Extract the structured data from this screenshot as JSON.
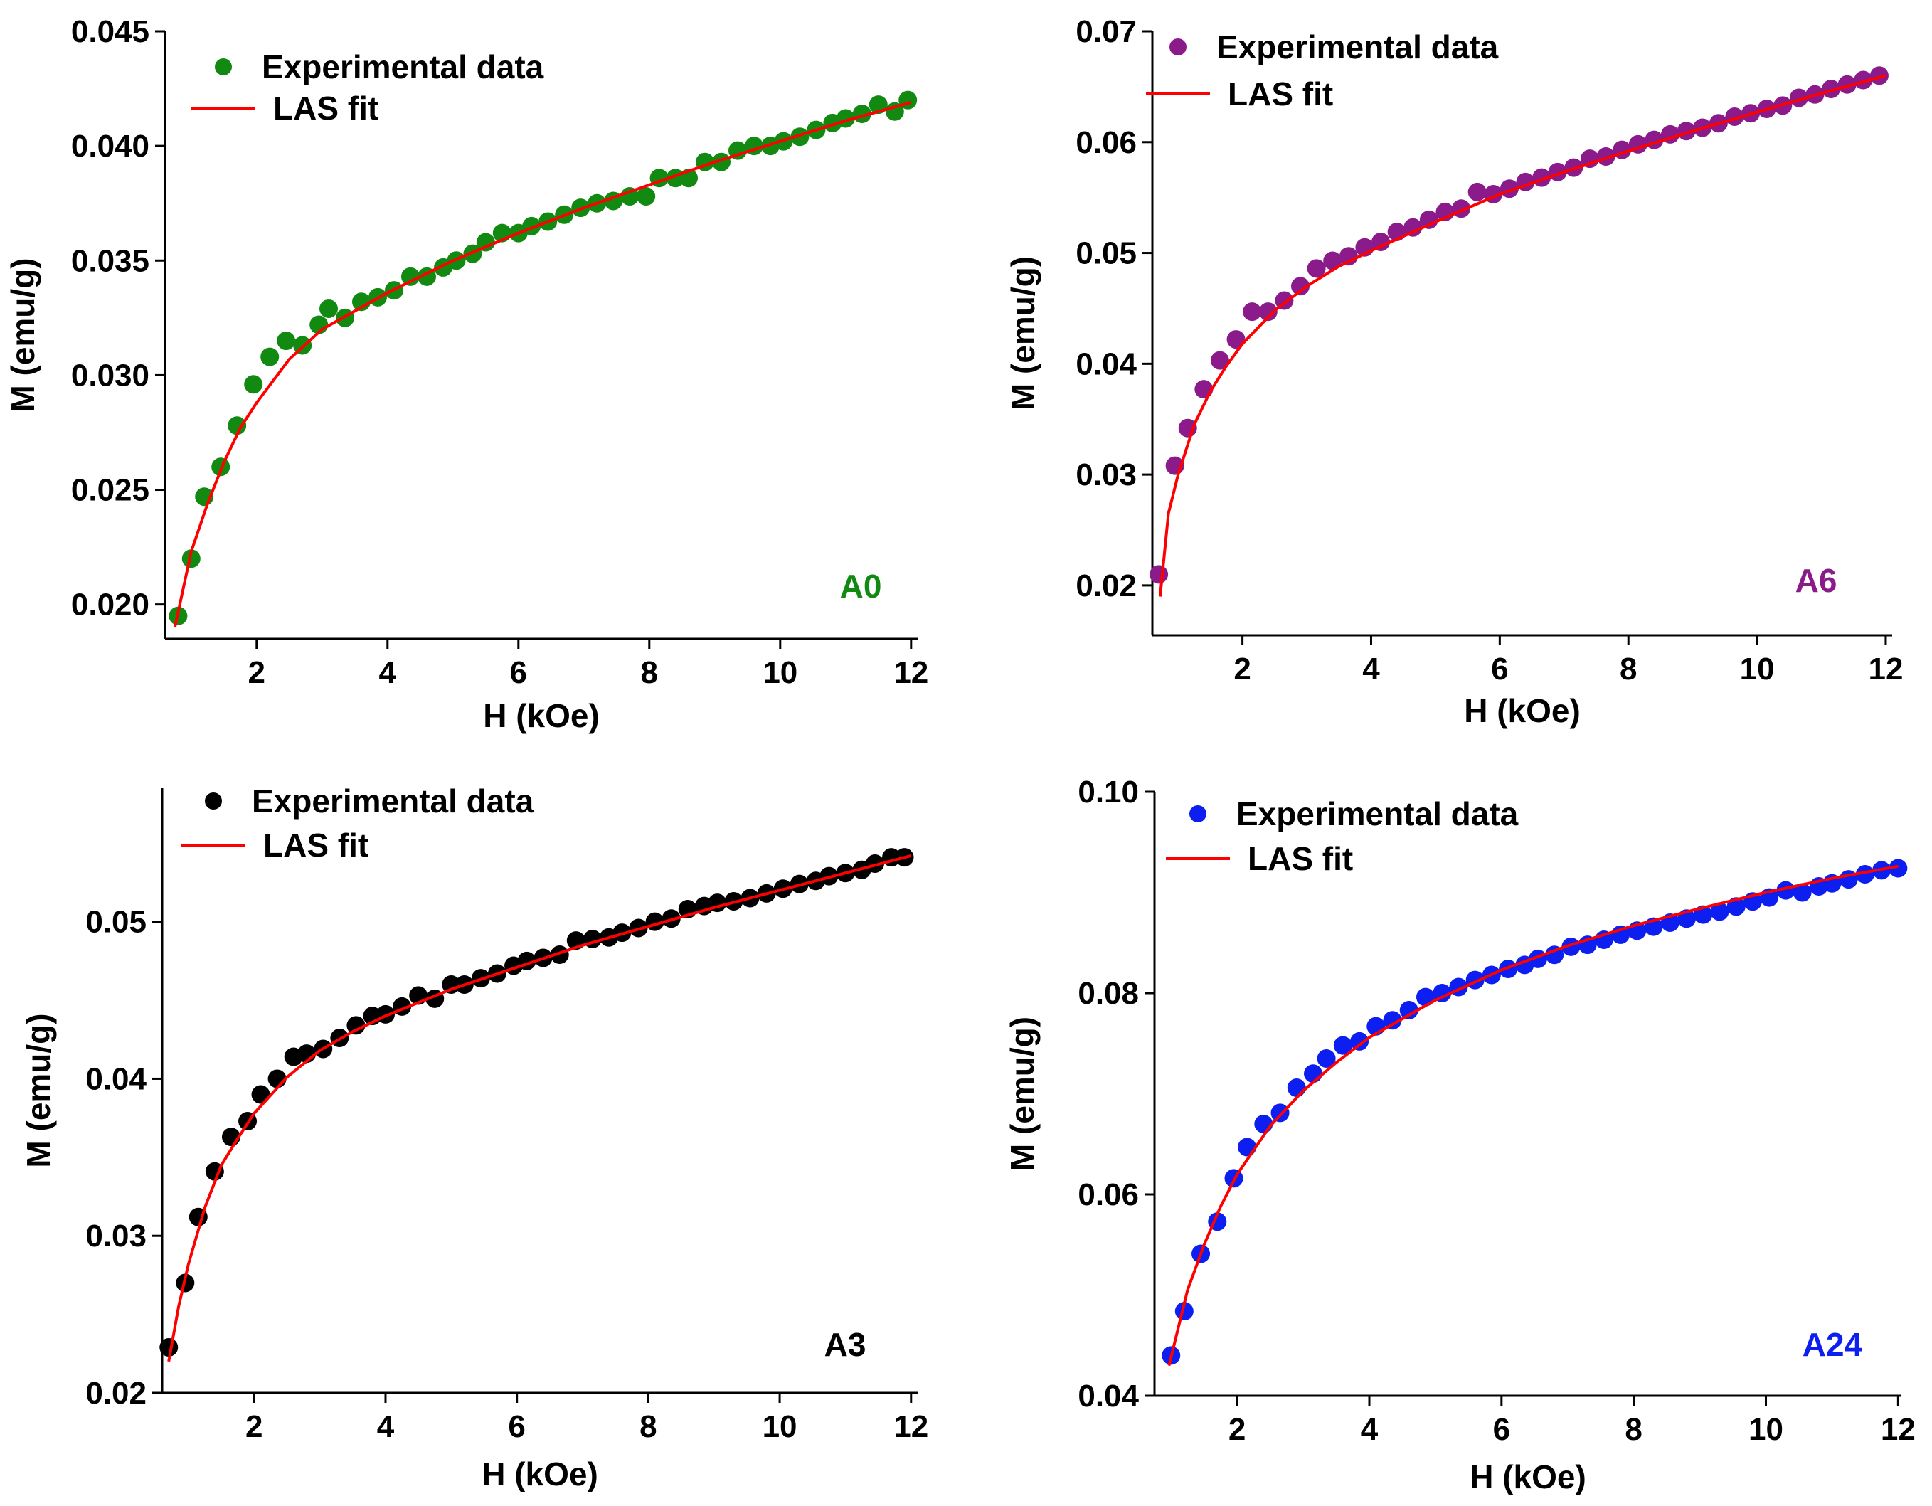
{
  "chart_data": [
    {
      "id": "A0",
      "type": "scatter",
      "sample_label": "A0",
      "color": "#128a12",
      "fit_color": "#ff0000",
      "xlabel": "H (kOe)",
      "ylabel": "M (emu/g)",
      "xlim": [
        0.6,
        12.1
      ],
      "ylim": [
        0.0185,
        0.045
      ],
      "xticks": [
        2,
        4,
        6,
        8,
        10,
        12
      ],
      "xtick_labels": [
        "2",
        "4",
        "6",
        "8",
        "10",
        "12"
      ],
      "yticks": [
        0.02,
        0.025,
        0.03,
        0.035,
        0.04,
        0.045
      ],
      "ytick_labels": [
        "0.020",
        "0.025",
        "0.030",
        "0.035",
        "0.040",
        "0.045"
      ],
      "legend": {
        "data_label": "Experimental data",
        "fit_label": "LAS fit",
        "position": "top-left"
      },
      "experimental": {
        "x": [
          0.8,
          1.0,
          1.2,
          1.45,
          1.7,
          1.95,
          2.2,
          2.45,
          2.7,
          2.95,
          3.1,
          3.35,
          3.6,
          3.85,
          4.1,
          4.35,
          4.6,
          4.85,
          5.05,
          5.3,
          5.5,
          5.75,
          6.0,
          6.2,
          6.45,
          6.7,
          6.95,
          7.2,
          7.45,
          7.7,
          7.95,
          8.15,
          8.4,
          8.6,
          8.85,
          9.1,
          9.35,
          9.6,
          9.85,
          10.05,
          10.3,
          10.55,
          10.8,
          11.0,
          11.25,
          11.5,
          11.75,
          11.95
        ],
        "y": [
          0.0195,
          0.022,
          0.0247,
          0.026,
          0.0278,
          0.0296,
          0.0308,
          0.0315,
          0.0313,
          0.0322,
          0.0329,
          0.0325,
          0.0332,
          0.0334,
          0.0337,
          0.0343,
          0.0343,
          0.0347,
          0.035,
          0.0353,
          0.0358,
          0.0362,
          0.0362,
          0.0365,
          0.0367,
          0.037,
          0.0373,
          0.0375,
          0.0376,
          0.0378,
          0.0378,
          0.0386,
          0.0386,
          0.0386,
          0.0393,
          0.0393,
          0.0398,
          0.04,
          0.04,
          0.0402,
          0.0404,
          0.0407,
          0.041,
          0.0412,
          0.0414,
          0.0418,
          0.0415,
          0.042
        ]
      },
      "fit": {
        "x": [
          0.75,
          1.0,
          1.25,
          1.5,
          1.75,
          2.0,
          2.5,
          3.0,
          3.5,
          4.0,
          5.0,
          6.0,
          7.0,
          8.0,
          9.0,
          10.0,
          11.0,
          12.0
        ],
        "y": [
          0.019,
          0.0223,
          0.0244,
          0.0262,
          0.0277,
          0.0288,
          0.0307,
          0.032,
          0.0328,
          0.0336,
          0.035,
          0.0362,
          0.0373,
          0.0383,
          0.0393,
          0.0402,
          0.0411,
          0.0419
        ]
      }
    },
    {
      "id": "A6",
      "type": "scatter",
      "sample_label": "A6",
      "color": "#8b1a8b",
      "fit_color": "#ff0000",
      "xlabel": "H (kOe)",
      "ylabel": "M (emu/g)",
      "xlim": [
        0.6,
        12.1
      ],
      "ylim": [
        0.0155,
        0.07
      ],
      "xticks": [
        2,
        4,
        6,
        8,
        10,
        12
      ],
      "xtick_labels": [
        "2",
        "4",
        "6",
        "8",
        "10",
        "12"
      ],
      "yticks": [
        0.02,
        0.03,
        0.04,
        0.05,
        0.06,
        0.07
      ],
      "ytick_labels": [
        "0.02",
        "0.03",
        "0.04",
        "0.05",
        "0.06",
        "0.07"
      ],
      "legend": {
        "data_label": "Experimental data",
        "fit_label": "LAS fit",
        "position": "top-left"
      },
      "experimental": {
        "x": [
          0.7,
          0.95,
          1.15,
          1.4,
          1.65,
          1.9,
          2.15,
          2.4,
          2.65,
          2.9,
          3.15,
          3.4,
          3.65,
          3.9,
          4.15,
          4.4,
          4.65,
          4.9,
          5.15,
          5.4,
          5.65,
          5.9,
          6.15,
          6.4,
          6.65,
          6.9,
          7.15,
          7.4,
          7.65,
          7.9,
          8.15,
          8.4,
          8.65,
          8.9,
          9.15,
          9.4,
          9.65,
          9.9,
          10.15,
          10.4,
          10.65,
          10.9,
          11.15,
          11.4,
          11.65,
          11.9
        ],
        "y": [
          0.021,
          0.0308,
          0.0342,
          0.0377,
          0.0403,
          0.0422,
          0.0447,
          0.0447,
          0.0457,
          0.047,
          0.0486,
          0.0493,
          0.0497,
          0.0505,
          0.051,
          0.0519,
          0.0523,
          0.053,
          0.0537,
          0.054,
          0.0555,
          0.0553,
          0.0558,
          0.0564,
          0.0568,
          0.0573,
          0.0577,
          0.0585,
          0.0587,
          0.0593,
          0.0598,
          0.0602,
          0.0607,
          0.061,
          0.0613,
          0.0617,
          0.0623,
          0.0626,
          0.063,
          0.0633,
          0.064,
          0.0643,
          0.0648,
          0.0652,
          0.0656,
          0.066
        ]
      },
      "fit": {
        "x": [
          0.72,
          0.85,
          1.0,
          1.25,
          1.5,
          1.75,
          2.0,
          2.5,
          3.0,
          3.5,
          4.0,
          5.0,
          6.0,
          7.0,
          8.0,
          9.0,
          10.0,
          11.0,
          12.0
        ],
        "y": [
          0.019,
          0.0265,
          0.03,
          0.0345,
          0.0375,
          0.0398,
          0.0418,
          0.0448,
          0.047,
          0.0488,
          0.0502,
          0.0528,
          0.0553,
          0.0573,
          0.0592,
          0.061,
          0.0627,
          0.0644,
          0.066
        ]
      }
    },
    {
      "id": "A3",
      "type": "scatter",
      "sample_label": "A3",
      "color": "#000000",
      "fit_color": "#ff0000",
      "xlabel": "H (kOe)",
      "ylabel": "M (emu/g)",
      "xlim": [
        0.6,
        12.1
      ],
      "ylim": [
        0.02,
        0.0585
      ],
      "xticks": [
        2,
        4,
        6,
        8,
        10,
        12
      ],
      "xtick_labels": [
        "2",
        "4",
        "6",
        "8",
        "10",
        "12"
      ],
      "yticks": [
        0.02,
        0.03,
        0.04,
        0.05
      ],
      "ytick_labels": [
        "0.02",
        "0.03",
        "0.04",
        "0.05"
      ],
      "legend": {
        "data_label": "Experimental data",
        "fit_label": "LAS fit",
        "position": "top-left"
      },
      "experimental": {
        "x": [
          0.7,
          0.95,
          1.15,
          1.4,
          1.65,
          1.9,
          2.1,
          2.35,
          2.6,
          2.8,
          3.05,
          3.3,
          3.55,
          3.8,
          4.0,
          4.25,
          4.5,
          4.75,
          5.0,
          5.2,
          5.45,
          5.7,
          5.95,
          6.15,
          6.4,
          6.65,
          6.9,
          7.15,
          7.4,
          7.6,
          7.85,
          8.1,
          8.35,
          8.6,
          8.85,
          9.05,
          9.3,
          9.55,
          9.8,
          10.05,
          10.3,
          10.55,
          10.75,
          11.0,
          11.25,
          11.45,
          11.7,
          11.9
        ],
        "y": [
          0.0229,
          0.027,
          0.0312,
          0.0341,
          0.0363,
          0.0373,
          0.039,
          0.04,
          0.0414,
          0.0416,
          0.0419,
          0.0426,
          0.0434,
          0.044,
          0.0441,
          0.0446,
          0.0453,
          0.0451,
          0.046,
          0.046,
          0.0464,
          0.0467,
          0.0472,
          0.0475,
          0.0477,
          0.0479,
          0.0488,
          0.0489,
          0.049,
          0.0493,
          0.0496,
          0.05,
          0.0502,
          0.0508,
          0.051,
          0.0512,
          0.0513,
          0.0515,
          0.0518,
          0.0521,
          0.0524,
          0.0526,
          0.0529,
          0.0531,
          0.0533,
          0.0537,
          0.0541,
          0.0541
        ]
      },
      "fit": {
        "x": [
          0.7,
          0.85,
          1.0,
          1.25,
          1.5,
          1.75,
          2.0,
          2.5,
          3.0,
          3.5,
          4.0,
          5.0,
          6.0,
          7.0,
          8.0,
          9.0,
          10.0,
          11.0,
          12.0
        ],
        "y": [
          0.022,
          0.0255,
          0.0282,
          0.0318,
          0.0345,
          0.0362,
          0.0378,
          0.0401,
          0.0418,
          0.043,
          0.044,
          0.0457,
          0.0471,
          0.0485,
          0.0497,
          0.0509,
          0.052,
          0.0531,
          0.0542
        ]
      }
    },
    {
      "id": "A24",
      "type": "scatter",
      "sample_label": "A24",
      "color": "#0d1ef0",
      "fit_color": "#ff0000",
      "xlabel": "H (kOe)",
      "ylabel": "M (emu/g)",
      "xlim": [
        0.75,
        12.05
      ],
      "ylim": [
        0.04,
        0.1
      ],
      "xticks": [
        2,
        4,
        6,
        8,
        10,
        12
      ],
      "xtick_labels": [
        "2",
        "4",
        "6",
        "8",
        "10",
        "12"
      ],
      "yticks": [
        0.04,
        0.06,
        0.08,
        0.1
      ],
      "ytick_labels": [
        "0.04",
        "0.06",
        "0.08",
        "0.10"
      ],
      "legend": {
        "data_label": "Experimental data",
        "fit_label": "LAS fit",
        "position": "top-left"
      },
      "experimental": {
        "x": [
          1.0,
          1.2,
          1.45,
          1.7,
          1.95,
          2.15,
          2.4,
          2.65,
          2.9,
          3.15,
          3.35,
          3.6,
          3.85,
          4.1,
          4.35,
          4.6,
          4.85,
          5.1,
          5.35,
          5.6,
          5.85,
          6.1,
          6.35,
          6.55,
          6.8,
          7.05,
          7.3,
          7.55,
          7.8,
          8.05,
          8.3,
          8.55,
          8.8,
          9.05,
          9.3,
          9.55,
          9.8,
          10.05,
          10.3,
          10.55,
          10.8,
          11.0,
          11.25,
          11.5,
          11.75,
          12.0
        ],
        "y": [
          0.044,
          0.0484,
          0.0541,
          0.0573,
          0.0616,
          0.0647,
          0.067,
          0.0681,
          0.0706,
          0.072,
          0.0735,
          0.0748,
          0.0752,
          0.0767,
          0.0773,
          0.0783,
          0.0796,
          0.08,
          0.0806,
          0.0813,
          0.0818,
          0.0824,
          0.0828,
          0.0834,
          0.0838,
          0.0846,
          0.0848,
          0.0853,
          0.0858,
          0.0862,
          0.0866,
          0.087,
          0.0874,
          0.0878,
          0.0881,
          0.0886,
          0.0891,
          0.0895,
          0.0902,
          0.09,
          0.0906,
          0.0909,
          0.0913,
          0.0918,
          0.0922,
          0.0924
        ]
      },
      "fit": {
        "x": [
          0.97,
          1.25,
          1.5,
          1.75,
          2.0,
          2.5,
          3.0,
          3.5,
          4.0,
          5.0,
          6.0,
          7.0,
          8.0,
          9.0,
          10.0,
          11.0,
          12.0
        ],
        "y": [
          0.043,
          0.0505,
          0.055,
          0.0588,
          0.062,
          0.0668,
          0.0703,
          0.0731,
          0.0756,
          0.0793,
          0.0823,
          0.0847,
          0.0867,
          0.0884,
          0.09,
          0.0914,
          0.0926
        ]
      }
    }
  ]
}
